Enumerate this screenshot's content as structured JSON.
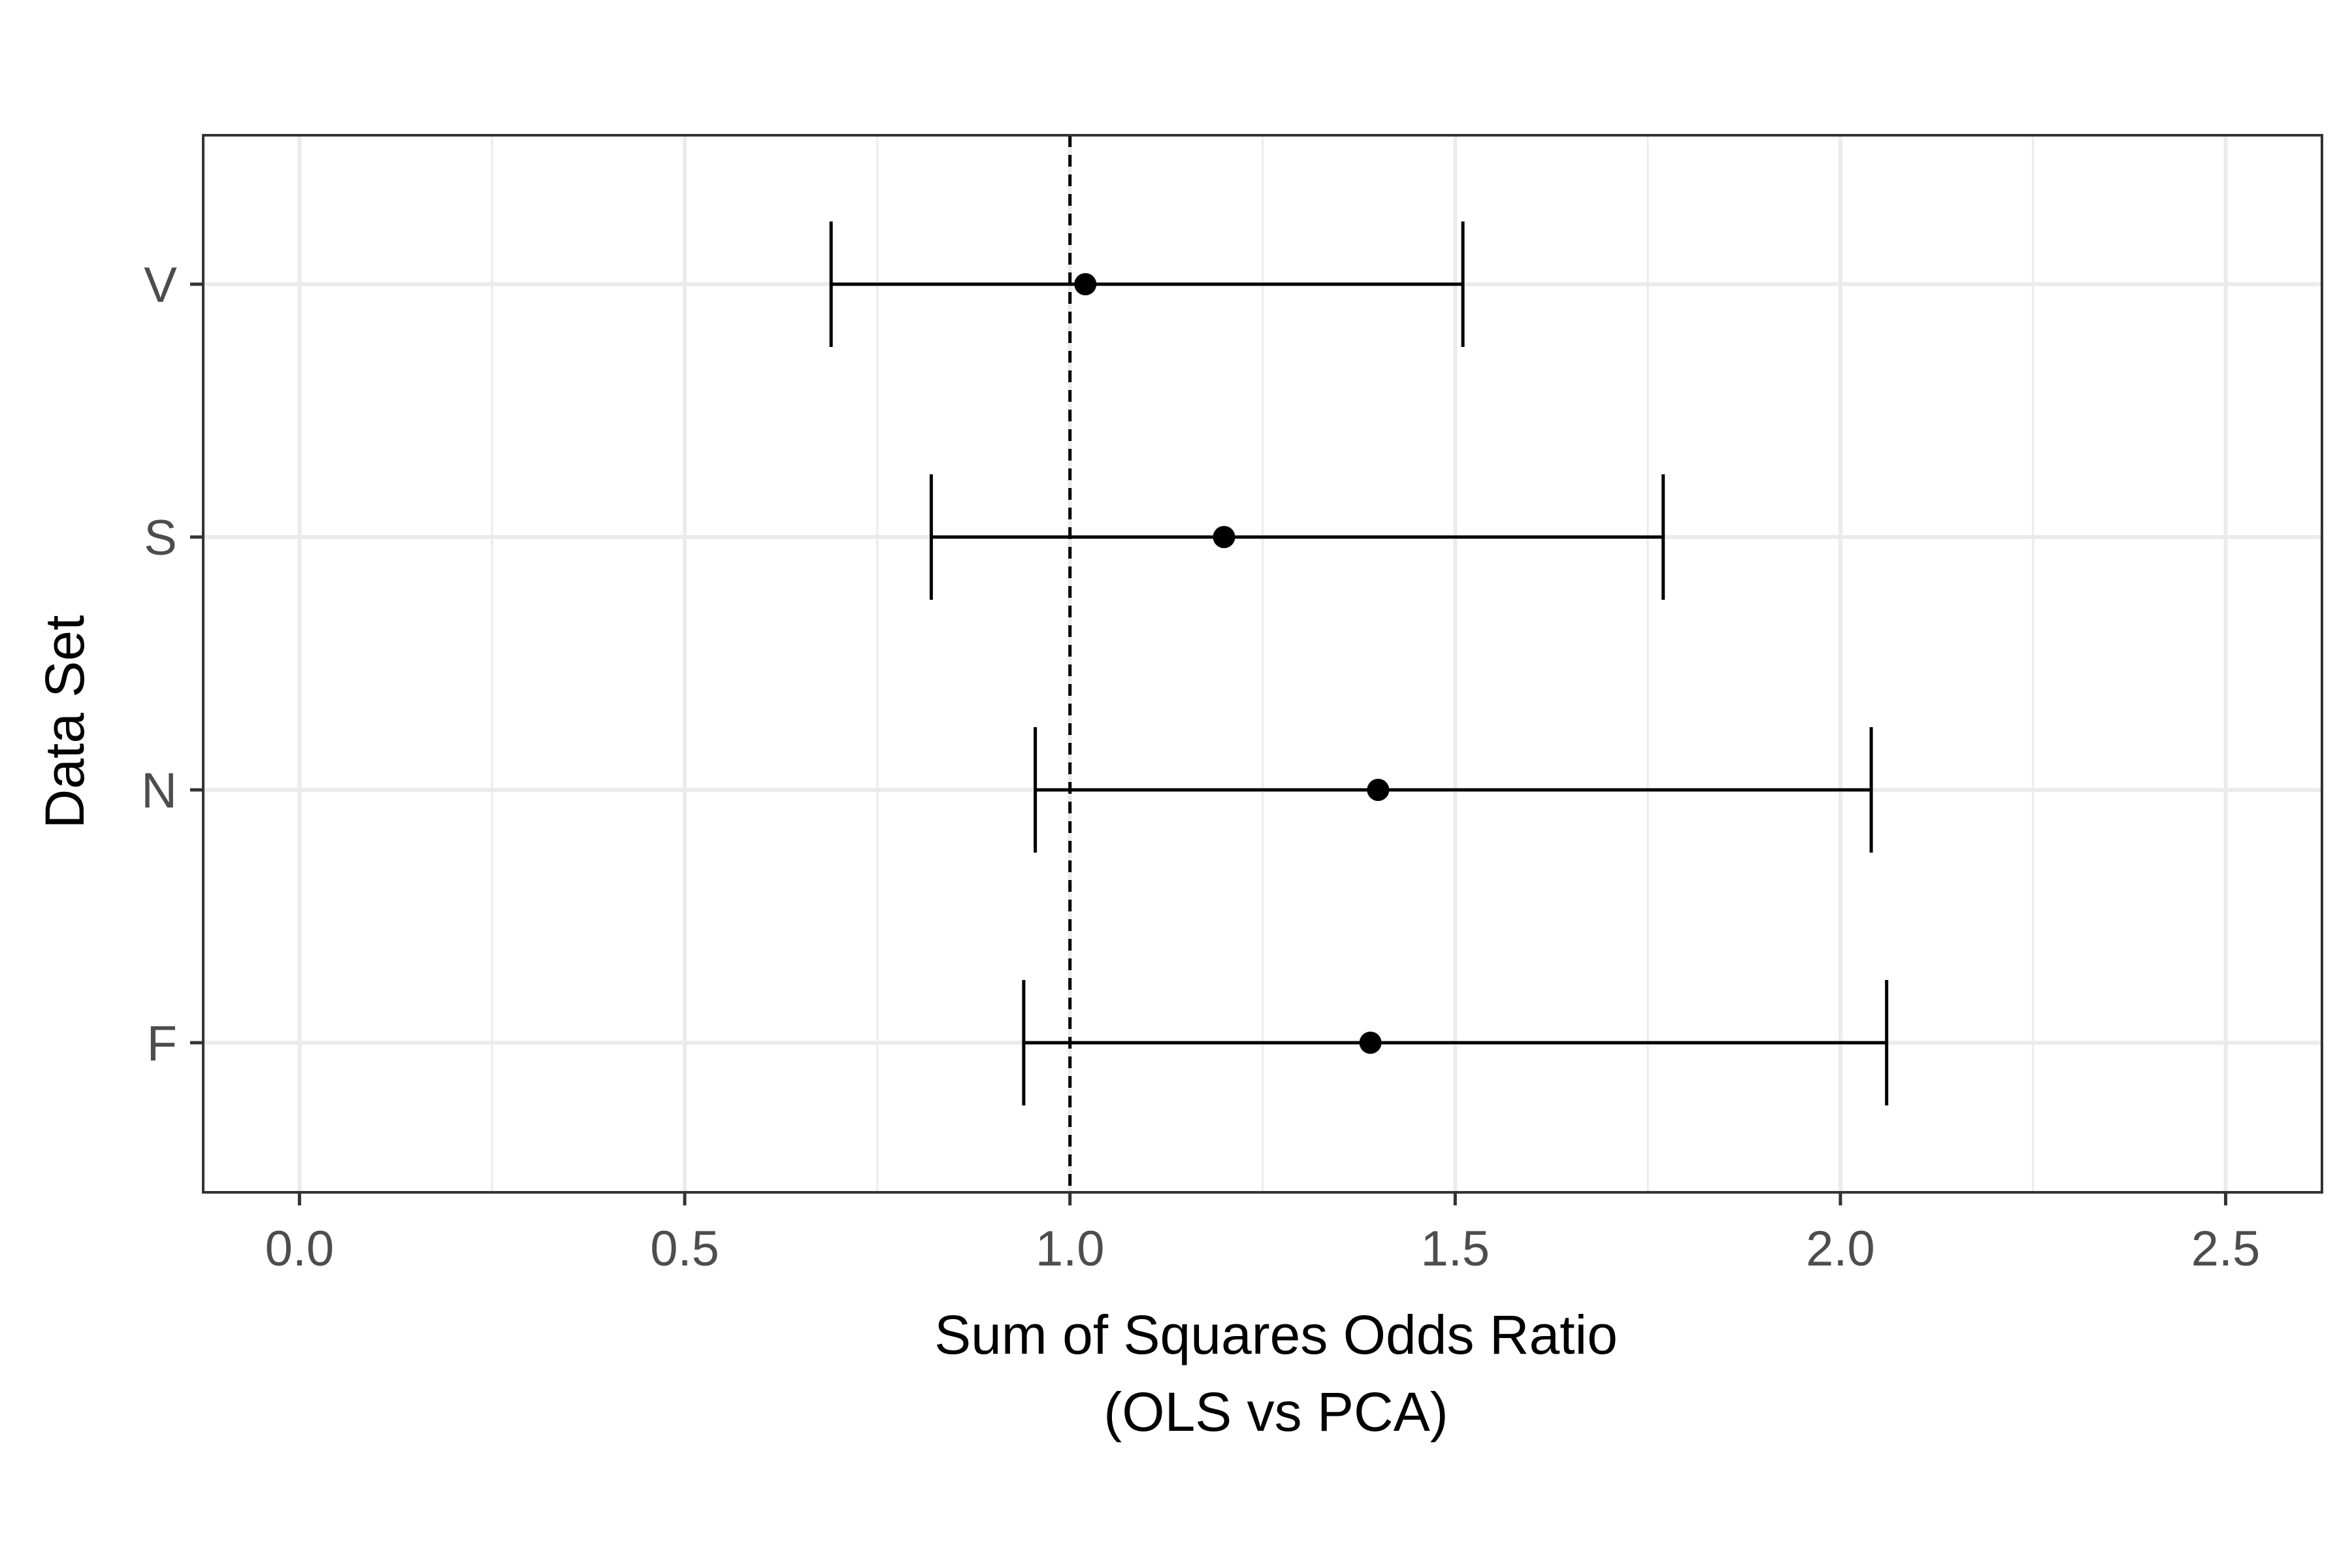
{
  "chart_data": {
    "type": "forest",
    "title": "",
    "xlabel_lines": [
      "Sum of Squares Odds Ratio",
      "(OLS vs PCA)"
    ],
    "ylabel": "Data Set",
    "xlim": [
      -0.125,
      2.625
    ],
    "x_ticks": [
      0.0,
      0.5,
      1.0,
      1.5,
      2.0,
      2.5
    ],
    "x_tick_labels": [
      "0.0",
      "0.5",
      "1.0",
      "1.5",
      "2.0",
      "2.5"
    ],
    "reference_line": 1.0,
    "grid": true,
    "categories": [
      "V",
      "S",
      "N",
      "F"
    ],
    "estimates": [
      1.02,
      1.2,
      1.4,
      1.39
    ],
    "lower": [
      0.69,
      0.82,
      0.955,
      0.94
    ],
    "upper": [
      1.51,
      1.77,
      2.04,
      2.06
    ],
    "colors": {
      "points": "#000000",
      "grid": "#ebebeb",
      "border": "#333333"
    }
  }
}
